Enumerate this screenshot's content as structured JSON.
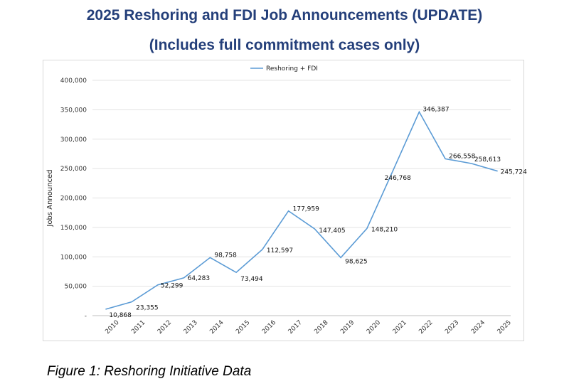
{
  "page": {
    "title_line1": "2025 Reshoring and FDI Job Announcements (UPDATE)",
    "title_line2": "(Includes full commitment cases only)",
    "caption": "Figure 1: Reshoring Initiative Data"
  },
  "chart_data": {
    "type": "line",
    "x": [
      "2010",
      "2011",
      "2012",
      "2013",
      "2014",
      "2015",
      "2016",
      "2017",
      "2018",
      "2019",
      "2020",
      "2021",
      "2022",
      "2023",
      "2024",
      "2025"
    ],
    "series": [
      {
        "name": "Reshoring + FDI",
        "color": "#5b9bd5",
        "values": [
          10868,
          23355,
          52299,
          64283,
          98758,
          73494,
          112597,
          177959,
          147405,
          98625,
          148210,
          246768,
          346387,
          266558,
          258613,
          245724
        ],
        "labels": [
          "10,868",
          "23,355",
          "52,299",
          "64,283",
          "98,758",
          "73,494",
          "112,597",
          "177,959",
          "147,405",
          "98,625",
          "148,210",
          "246,768",
          "346,387",
          "266,558",
          "258,613",
          "245,724"
        ]
      }
    ],
    "ylabel": "Jobs Announced",
    "xlabel": "",
    "ylim": [
      0,
      400000
    ],
    "y_ticks": [
      0,
      50000,
      100000,
      150000,
      200000,
      250000,
      300000,
      350000,
      400000
    ],
    "y_tick_labels": [
      "-",
      "50,000",
      "100,000",
      "150,000",
      "200,000",
      "250,000",
      "300,000",
      "350,000",
      "400,000"
    ],
    "grid": true,
    "legend_position": "top-center"
  }
}
